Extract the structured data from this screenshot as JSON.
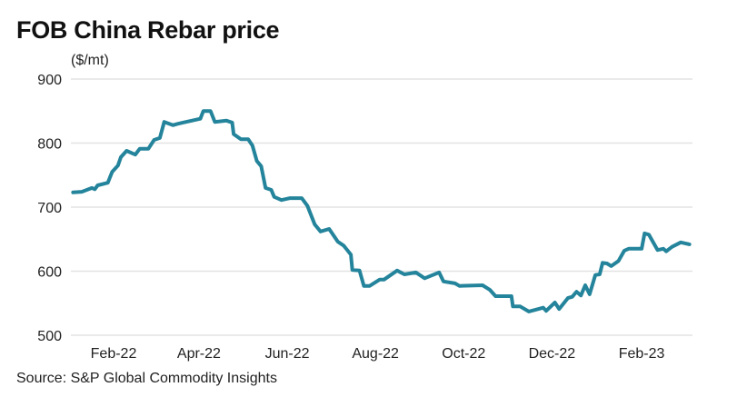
{
  "chart_data": {
    "type": "line",
    "title": "FOB China Rebar price",
    "ylabel": "($/mt)",
    "xlabel": "",
    "source": "Source: S&P Global Commodity Insights",
    "ylim": [
      500,
      900
    ],
    "yticks": [
      500,
      600,
      700,
      800,
      900
    ],
    "x_unit": "days since 2022-01-01",
    "xticks": [
      {
        "label": "Feb-22",
        "day": 31
      },
      {
        "label": "Apr-22",
        "day": 90
      },
      {
        "label": "Jun-22",
        "day": 151
      },
      {
        "label": "Aug-22",
        "day": 212
      },
      {
        "label": "Oct-22",
        "day": 273
      },
      {
        "label": "Dec-22",
        "day": 334
      },
      {
        "label": "Feb-23",
        "day": 396
      }
    ],
    "grid": true,
    "color": "#24849b",
    "series": [
      {
        "name": "FOB China Rebar",
        "x": [
          3,
          9,
          16,
          18,
          20,
          27,
          30,
          34,
          36,
          40,
          46,
          49,
          55,
          59,
          63,
          66,
          72,
          75,
          79,
          85,
          91,
          93,
          98,
          101,
          109,
          113,
          114,
          119,
          124,
          127,
          130,
          133,
          136,
          140,
          142,
          147,
          153,
          161,
          165,
          170,
          174,
          180,
          186,
          190,
          195,
          196,
          201,
          204,
          208,
          215,
          218,
          227,
          232,
          240,
          246,
          256,
          259,
          267,
          270,
          286,
          291,
          295,
          306,
          307,
          312,
          318,
          328,
          330,
          336,
          339,
          345,
          348,
          351,
          354,
          357,
          360,
          364,
          367,
          369,
          372,
          375,
          380,
          384,
          387,
          396,
          398,
          401,
          407,
          411,
          413,
          417,
          423,
          429
        ],
        "values": [
          723,
          724,
          730,
          728,
          734,
          738,
          755,
          765,
          778,
          788,
          782,
          791,
          791,
          805,
          808,
          833,
          828,
          830,
          832,
          835,
          838,
          850,
          850,
          833,
          835,
          832,
          814,
          806,
          806,
          796,
          772,
          764,
          730,
          727,
          716,
          711,
          714,
          714,
          702,
          673,
          662,
          666,
          646,
          640,
          626,
          602,
          601,
          577,
          577,
          587,
          587,
          601,
          595,
          598,
          589,
          598,
          584,
          581,
          577,
          578,
          571,
          561,
          561,
          545,
          545,
          537,
          543,
          538,
          551,
          541,
          558,
          560,
          568,
          562,
          578,
          564,
          594,
          595,
          613,
          612,
          608,
          616,
          632,
          635,
          635,
          659,
          657,
          633,
          635,
          631,
          638,
          645,
          642
        ]
      }
    ]
  }
}
